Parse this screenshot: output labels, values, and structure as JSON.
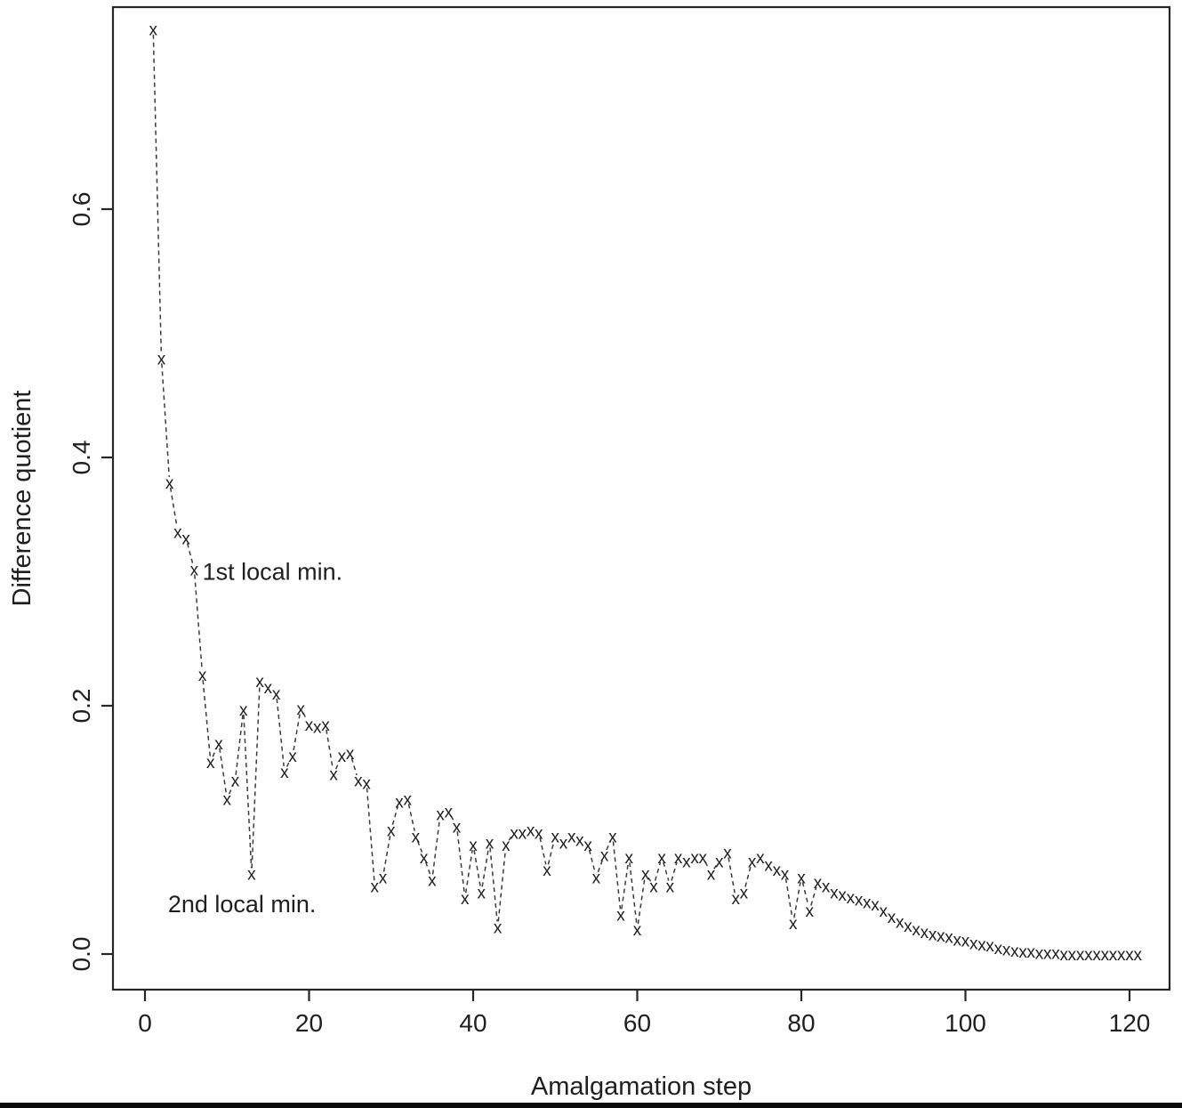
{
  "chart_data": {
    "type": "scatter",
    "title": "",
    "xlabel": "Amalgamation step",
    "ylabel": "Difference quotient",
    "marker": "x",
    "line_style": "dashed",
    "grid": false,
    "legend": "none",
    "x_ticks": [
      0,
      20,
      40,
      60,
      80,
      100,
      120
    ],
    "y_ticks": [
      0.0,
      0.2,
      0.4,
      0.6
    ],
    "xlim": [
      -4,
      125
    ],
    "ylim": [
      -0.03,
      0.77
    ],
    "series": [
      {
        "name": "difference quotient",
        "x": [
          1,
          2,
          3,
          4,
          5,
          6,
          7,
          8,
          9,
          10,
          11,
          12,
          13,
          14,
          15,
          16,
          17,
          18,
          19,
          20,
          21,
          22,
          23,
          24,
          25,
          26,
          27,
          28,
          29,
          30,
          31,
          32,
          33,
          34,
          35,
          36,
          37,
          38,
          39,
          40,
          41,
          42,
          43,
          44,
          45,
          46,
          47,
          48,
          49,
          50,
          51,
          52,
          53,
          54,
          55,
          56,
          57,
          58,
          59,
          60,
          61,
          62,
          63,
          64,
          65,
          66,
          67,
          68,
          69,
          70,
          71,
          72,
          73,
          74,
          75,
          76,
          77,
          78,
          79,
          80,
          81,
          82,
          83,
          84,
          85,
          86,
          87,
          88,
          89,
          90,
          91,
          92,
          93,
          94,
          95,
          96,
          97,
          98,
          99,
          100,
          101,
          102,
          103,
          104,
          105,
          106,
          107,
          108,
          109,
          110,
          111,
          112,
          113,
          114,
          115,
          116,
          117,
          118,
          119,
          120,
          121
        ],
        "y": [
          0.745,
          0.48,
          0.38,
          0.34,
          0.335,
          0.31,
          0.225,
          0.155,
          0.17,
          0.125,
          0.14,
          0.197,
          0.065,
          0.22,
          0.215,
          0.21,
          0.147,
          0.16,
          0.198,
          0.185,
          0.183,
          0.185,
          0.145,
          0.16,
          0.162,
          0.14,
          0.138,
          0.055,
          0.062,
          0.1,
          0.123,
          0.125,
          0.095,
          0.078,
          0.06,
          0.113,
          0.115,
          0.103,
          0.045,
          0.088,
          0.05,
          0.09,
          0.022,
          0.088,
          0.098,
          0.098,
          0.1,
          0.098,
          0.068,
          0.095,
          0.09,
          0.095,
          0.092,
          0.088,
          0.062,
          0.08,
          0.095,
          0.032,
          0.078,
          0.02,
          0.065,
          0.055,
          0.078,
          0.055,
          0.078,
          0.075,
          0.078,
          0.078,
          0.065,
          0.075,
          0.082,
          0.045,
          0.05,
          0.075,
          0.078,
          0.072,
          0.068,
          0.065,
          0.025,
          0.062,
          0.035,
          0.058,
          0.055,
          0.05,
          0.048,
          0.046,
          0.044,
          0.042,
          0.04,
          0.035,
          0.03,
          0.026,
          0.023,
          0.02,
          0.018,
          0.016,
          0.015,
          0.014,
          0.012,
          0.011,
          0.009,
          0.008,
          0.007,
          0.005,
          0.004,
          0.003,
          0.002,
          0.002,
          0.001,
          0.001,
          0.001,
          0.0,
          0.0,
          0.0,
          0.0,
          0.0,
          0.0,
          0.0,
          0.0,
          0.0,
          0.0
        ]
      }
    ],
    "annotations": [
      {
        "text": "1st local min.",
        "x": 7.0,
        "y": 0.308,
        "anchor": "start"
      },
      {
        "text": "2nd local min.",
        "x": 2.8,
        "y": 0.04,
        "anchor": "start"
      }
    ]
  }
}
